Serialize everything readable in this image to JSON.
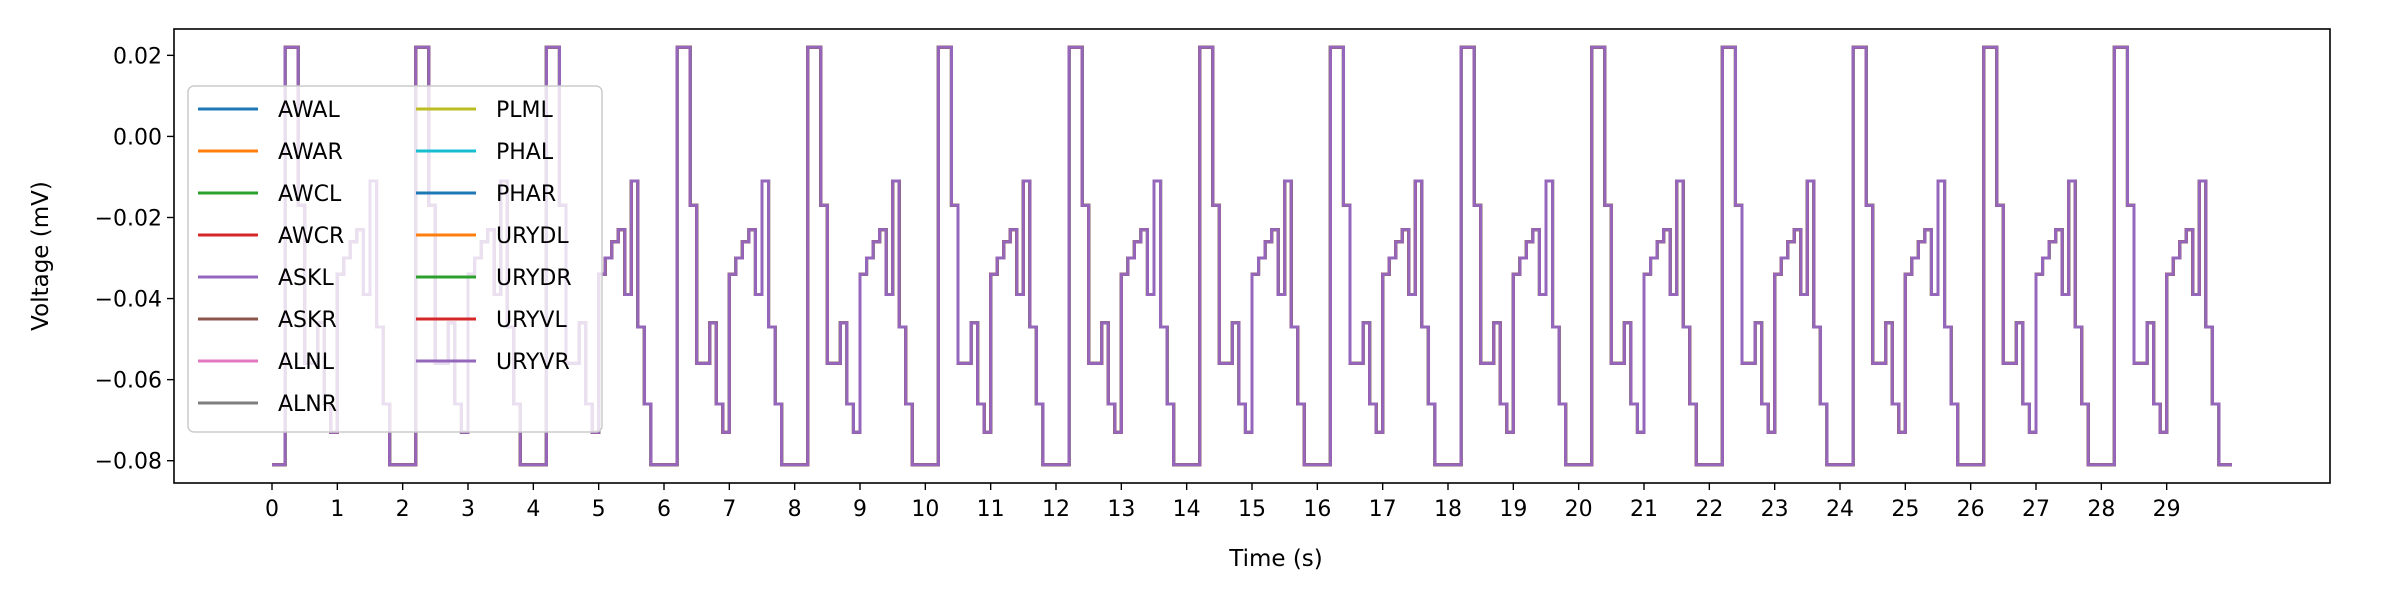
{
  "chart_data": {
    "type": "line",
    "title": "",
    "xlabel": "Time (s)",
    "ylabel": "Voltage (mV)",
    "xlim": [
      -1.5,
      31.5
    ],
    "ylim": [
      -0.0855,
      0.0265
    ],
    "x_ticks": [
      0,
      1,
      2,
      3,
      4,
      5,
      6,
      7,
      8,
      9,
      10,
      11,
      12,
      13,
      14,
      15,
      16,
      17,
      18,
      19,
      20,
      21,
      22,
      23,
      24,
      25,
      26,
      27,
      28,
      29
    ],
    "x_tick_labels": [
      "0",
      "1",
      "2",
      "3",
      "4",
      "5",
      "6",
      "7",
      "8",
      "9",
      "10",
      "11",
      "12",
      "13",
      "14",
      "15",
      "16",
      "17",
      "18",
      "19",
      "20",
      "21",
      "22",
      "23",
      "24",
      "25",
      "26",
      "27",
      "28",
      "29"
    ],
    "y_ticks": [
      0.02,
      0.0,
      -0.02,
      -0.04,
      -0.06,
      -0.08
    ],
    "y_tick_labels": [
      "0.02",
      "0.00",
      "−0.02",
      "−0.04",
      "−0.06",
      "−0.08"
    ],
    "grid": false,
    "legend_position": "upper-left",
    "legend_columns": 2,
    "series": [
      {
        "name": "AWAL",
        "color": "#1f77b4"
      },
      {
        "name": "AWAR",
        "color": "#ff7f0e"
      },
      {
        "name": "AWCL",
        "color": "#2ca02c"
      },
      {
        "name": "AWCR",
        "color": "#d62728"
      },
      {
        "name": "ASKL",
        "color": "#9467bd"
      },
      {
        "name": "ASKR",
        "color": "#8c564b"
      },
      {
        "name": "ALNL",
        "color": "#e377c2"
      },
      {
        "name": "ALNR",
        "color": "#7f7f7f"
      },
      {
        "name": "PLML",
        "color": "#bcbd22"
      },
      {
        "name": "PHAL",
        "color": "#17becf"
      },
      {
        "name": "PHAR",
        "color": "#1f77b4"
      },
      {
        "name": "URYDL",
        "color": "#ff7f0e"
      },
      {
        "name": "URYDR",
        "color": "#2ca02c"
      },
      {
        "name": "URYVL",
        "color": "#d62728"
      },
      {
        "name": "URYVR",
        "color": "#9467bd"
      }
    ],
    "waveform": {
      "description_of_values": "Identical step waveform shared by all series; repeats every period seconds over the time range.",
      "period": 2.0,
      "t_start": 0.0,
      "t_end": 30.0,
      "cycle_steps": [
        {
          "t": 0.0,
          "v": -0.081
        },
        {
          "t": 0.2,
          "v": 0.022
        },
        {
          "t": 0.4,
          "v": -0.017
        },
        {
          "t": 0.5,
          "v": -0.056
        },
        {
          "t": 0.7,
          "v": -0.046
        },
        {
          "t": 0.8,
          "v": -0.066
        },
        {
          "t": 0.9,
          "v": -0.073
        },
        {
          "t": 1.0,
          "v": -0.034
        },
        {
          "t": 1.1,
          "v": -0.03
        },
        {
          "t": 1.2,
          "v": -0.026
        },
        {
          "t": 1.3,
          "v": -0.023
        },
        {
          "t": 1.4,
          "v": -0.039
        },
        {
          "t": 1.5,
          "v": -0.011
        },
        {
          "t": 1.6,
          "v": -0.047
        },
        {
          "t": 1.7,
          "v": -0.066
        },
        {
          "t": 1.8,
          "v": -0.081
        }
      ],
      "final_value": -0.081
    }
  }
}
